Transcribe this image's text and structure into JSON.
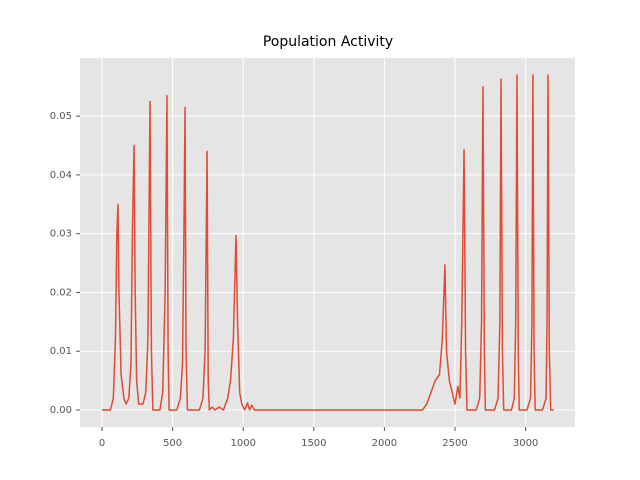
{
  "chart_data": {
    "type": "line",
    "title": "Population Activity",
    "x": [
      0,
      60,
      80,
      95,
      105,
      113,
      120,
      135,
      155,
      170,
      190,
      205,
      215,
      227,
      235,
      245,
      260,
      290,
      310,
      325,
      340,
      350,
      360,
      410,
      430,
      447,
      460,
      468,
      475,
      530,
      555,
      570,
      580,
      588,
      595,
      605,
      690,
      715,
      730,
      744,
      752,
      760,
      780,
      800,
      830,
      860,
      890,
      910,
      930,
      949,
      960,
      975,
      990,
      1010,
      1030,
      1045,
      1060,
      1080,
      2270,
      2300,
      2330,
      2360,
      2390,
      2410,
      2429,
      2440,
      2460,
      2480,
      2500,
      2520,
      2535,
      2548,
      2564,
      2575,
      2585,
      2650,
      2675,
      2688,
      2698,
      2708,
      2715,
      2780,
      2805,
      2818,
      2826,
      2836,
      2845,
      2900,
      2920,
      2930,
      2939,
      2948,
      2955,
      3010,
      3035,
      3045,
      3052,
      3060,
      3068,
      3120,
      3145,
      3152,
      3159,
      3168,
      3178,
      3200
    ],
    "series": [
      {
        "color": "#E24A33",
        "values": [
          0,
          0,
          0.002,
          0.012,
          0.03,
          0.035,
          0.02,
          0.006,
          0.002,
          0.001,
          0.002,
          0.008,
          0.03,
          0.045,
          0.02,
          0.005,
          0.001,
          0.001,
          0.003,
          0.012,
          0.0525,
          0.01,
          0,
          0,
          0.003,
          0.02,
          0.0535,
          0.01,
          0,
          0,
          0.002,
          0.008,
          0.03,
          0.0515,
          0.01,
          0,
          0,
          0.002,
          0.01,
          0.044,
          0.005,
          0,
          0.0005,
          0,
          0.0005,
          0,
          0.002,
          0.005,
          0.012,
          0.0297,
          0.015,
          0.003,
          0.001,
          0,
          0.0012,
          0,
          0.0008,
          0,
          0,
          0.001,
          0.003,
          0.005,
          0.006,
          0.012,
          0.0247,
          0.01,
          0.005,
          0.003,
          0.001,
          0.004,
          0.002,
          0.015,
          0.0443,
          0.01,
          0,
          0,
          0.002,
          0.015,
          0.055,
          0.01,
          0,
          0,
          0.002,
          0.015,
          0.0563,
          0.01,
          0,
          0,
          0.002,
          0.015,
          0.057,
          0.01,
          0,
          0,
          0.002,
          0.015,
          0.057,
          0.01,
          0,
          0,
          0.002,
          0.015,
          0.057,
          0.01,
          0,
          0
        ]
      }
    ],
    "xlim": [
      -156,
      3350
    ],
    "ylim": [
      -0.0029,
      0.0599
    ],
    "xticks": [
      0,
      500,
      1000,
      1500,
      2000,
      2500,
      3000
    ],
    "yticks": [
      {
        "value": 0,
        "label": "0.00"
      },
      {
        "value": 0.01,
        "label": "0.01"
      },
      {
        "value": 0.02,
        "label": "0.02"
      },
      {
        "value": 0.03,
        "label": "0.03"
      },
      {
        "value": 0.04,
        "label": "0.04"
      },
      {
        "value": 0.05,
        "label": "0.05"
      }
    ],
    "grid": true
  }
}
